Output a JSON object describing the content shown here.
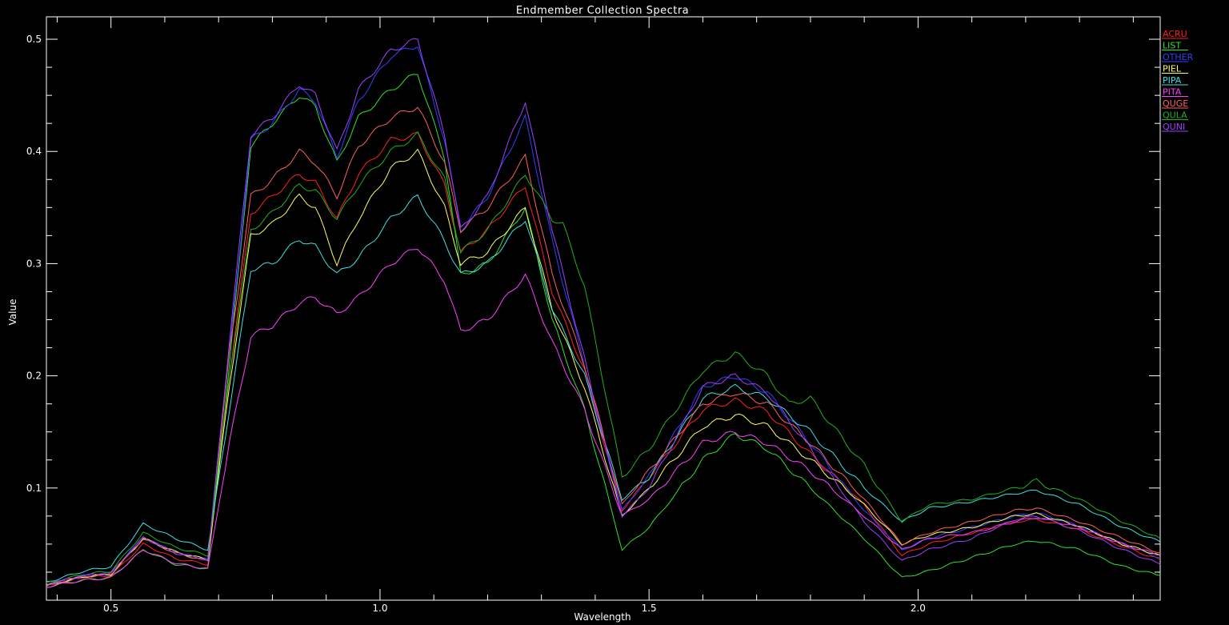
{
  "chart_data": {
    "type": "line",
    "title": "Endmember Collection Spectra",
    "xlabel": "Wavelength",
    "ylabel": "Value",
    "xlim": [
      0.38,
      2.45
    ],
    "ylim": [
      0.0,
      0.52
    ],
    "x_ticks": [
      0.5,
      1.0,
      1.5,
      2.0
    ],
    "x_tick_labels": [
      "0.5",
      "1.0",
      "1.5",
      "2.0"
    ],
    "y_ticks": [
      0.1,
      0.2,
      0.3,
      0.4,
      0.5
    ],
    "y_tick_labels": [
      "0.1",
      "0.2",
      "0.3",
      "0.4",
      "0.5"
    ],
    "grid": false,
    "background": "#000000",
    "axis_color": "#ffffff",
    "legend_placement": "top-right",
    "series": [
      {
        "name": "ACRU",
        "color": "#ff2020",
        "x": [
          0.38,
          0.45,
          0.5,
          0.56,
          0.62,
          0.68,
          0.72,
          0.76,
          0.8,
          0.85,
          0.88,
          0.92,
          0.96,
          1.02,
          1.07,
          1.12,
          1.15,
          1.2,
          1.27,
          1.32,
          1.38,
          1.45,
          1.5,
          1.6,
          1.66,
          1.72,
          1.8,
          1.9,
          1.97,
          2.02,
          2.1,
          2.18,
          2.22,
          2.3,
          2.38,
          2.45
        ],
        "y": [
          0.013,
          0.021,
          0.022,
          0.05,
          0.037,
          0.032,
          0.2,
          0.345,
          0.36,
          0.38,
          0.372,
          0.34,
          0.38,
          0.41,
          0.415,
          0.37,
          0.31,
          0.33,
          0.37,
          0.275,
          0.205,
          0.08,
          0.11,
          0.17,
          0.178,
          0.168,
          0.13,
          0.085,
          0.04,
          0.05,
          0.06,
          0.07,
          0.072,
          0.063,
          0.048,
          0.036
        ]
      },
      {
        "name": "LIST",
        "color": "#30e030",
        "x": [
          0.38,
          0.45,
          0.5,
          0.56,
          0.62,
          0.68,
          0.72,
          0.76,
          0.8,
          0.85,
          0.88,
          0.92,
          0.96,
          1.02,
          1.07,
          1.12,
          1.15,
          1.2,
          1.27,
          1.32,
          1.38,
          1.45,
          1.5,
          1.6,
          1.66,
          1.72,
          1.8,
          1.9,
          1.97,
          2.02,
          2.1,
          2.18,
          2.22,
          2.3,
          2.38,
          2.45
        ],
        "y": [
          0.012,
          0.018,
          0.02,
          0.045,
          0.032,
          0.028,
          0.21,
          0.405,
          0.425,
          0.45,
          0.44,
          0.39,
          0.43,
          0.455,
          0.47,
          0.395,
          0.29,
          0.3,
          0.35,
          0.25,
          0.17,
          0.045,
          0.065,
          0.125,
          0.148,
          0.135,
          0.1,
          0.055,
          0.02,
          0.026,
          0.038,
          0.05,
          0.053,
          0.045,
          0.03,
          0.022
        ]
      },
      {
        "name": "OTHER",
        "color": "#3040ff",
        "x": [
          0.38,
          0.45,
          0.5,
          0.56,
          0.62,
          0.68,
          0.72,
          0.76,
          0.8,
          0.85,
          0.88,
          0.92,
          0.96,
          1.02,
          1.07,
          1.12,
          1.15,
          1.2,
          1.27,
          1.32,
          1.38,
          1.45,
          1.5,
          1.6,
          1.66,
          1.72,
          1.8,
          1.9,
          1.97,
          2.02,
          2.1,
          2.18,
          2.22,
          2.3,
          2.38,
          2.45
        ],
        "y": [
          0.014,
          0.022,
          0.024,
          0.056,
          0.042,
          0.036,
          0.22,
          0.41,
          0.425,
          0.455,
          0.445,
          0.395,
          0.445,
          0.485,
          0.495,
          0.41,
          0.33,
          0.36,
          0.43,
          0.32,
          0.21,
          0.08,
          0.11,
          0.19,
          0.2,
          0.185,
          0.14,
          0.08,
          0.045,
          0.055,
          0.065,
          0.075,
          0.078,
          0.066,
          0.05,
          0.038
        ]
      },
      {
        "name": "PIEL",
        "color": "#ffff60",
        "x": [
          0.38,
          0.45,
          0.5,
          0.56,
          0.62,
          0.68,
          0.72,
          0.76,
          0.8,
          0.85,
          0.88,
          0.92,
          0.96,
          1.02,
          1.07,
          1.12,
          1.15,
          1.2,
          1.27,
          1.32,
          1.38,
          1.45,
          1.5,
          1.6,
          1.66,
          1.72,
          1.8,
          1.9,
          1.97,
          2.02,
          2.1,
          2.18,
          2.22,
          2.3,
          2.38,
          2.45
        ],
        "y": [
          0.013,
          0.021,
          0.023,
          0.055,
          0.043,
          0.036,
          0.19,
          0.325,
          0.335,
          0.36,
          0.35,
          0.3,
          0.34,
          0.385,
          0.4,
          0.35,
          0.3,
          0.31,
          0.35,
          0.26,
          0.19,
          0.075,
          0.1,
          0.155,
          0.165,
          0.155,
          0.125,
          0.085,
          0.05,
          0.058,
          0.065,
          0.075,
          0.077,
          0.066,
          0.05,
          0.04
        ]
      },
      {
        "name": "PIPA",
        "color": "#40e0e0",
        "x": [
          0.38,
          0.45,
          0.5,
          0.56,
          0.62,
          0.68,
          0.72,
          0.76,
          0.8,
          0.85,
          0.88,
          0.92,
          0.96,
          1.02,
          1.07,
          1.12,
          1.15,
          1.2,
          1.27,
          1.32,
          1.38,
          1.45,
          1.5,
          1.6,
          1.66,
          1.72,
          1.8,
          1.9,
          1.97,
          2.02,
          2.1,
          2.18,
          2.22,
          2.3,
          2.38,
          2.45
        ],
        "y": [
          0.016,
          0.026,
          0.03,
          0.068,
          0.055,
          0.045,
          0.17,
          0.295,
          0.3,
          0.322,
          0.315,
          0.29,
          0.305,
          0.34,
          0.36,
          0.32,
          0.29,
          0.3,
          0.34,
          0.26,
          0.2,
          0.09,
          0.11,
          0.18,
          0.19,
          0.18,
          0.15,
          0.1,
          0.07,
          0.082,
          0.088,
          0.095,
          0.098,
          0.085,
          0.065,
          0.052
        ]
      },
      {
        "name": "PITA",
        "color": "#ff40ff",
        "x": [
          0.38,
          0.45,
          0.5,
          0.56,
          0.62,
          0.68,
          0.72,
          0.76,
          0.8,
          0.85,
          0.88,
          0.92,
          0.96,
          1.02,
          1.07,
          1.12,
          1.15,
          1.2,
          1.27,
          1.32,
          1.38,
          1.45,
          1.5,
          1.6,
          1.66,
          1.72,
          1.8,
          1.9,
          1.97,
          2.02,
          2.1,
          2.18,
          2.22,
          2.3,
          2.38,
          2.45
        ],
        "y": [
          0.012,
          0.018,
          0.02,
          0.045,
          0.033,
          0.028,
          0.14,
          0.235,
          0.245,
          0.265,
          0.27,
          0.255,
          0.27,
          0.3,
          0.315,
          0.285,
          0.24,
          0.25,
          0.29,
          0.23,
          0.17,
          0.075,
          0.09,
          0.14,
          0.15,
          0.14,
          0.115,
          0.075,
          0.045,
          0.055,
          0.06,
          0.07,
          0.074,
          0.065,
          0.05,
          0.04
        ]
      },
      {
        "name": "QUGE",
        "color": "#ff6060",
        "x": [
          0.38,
          0.45,
          0.5,
          0.56,
          0.62,
          0.68,
          0.72,
          0.76,
          0.8,
          0.85,
          0.88,
          0.92,
          0.96,
          1.02,
          1.07,
          1.12,
          1.15,
          1.2,
          1.27,
          1.32,
          1.38,
          1.45,
          1.5,
          1.6,
          1.66,
          1.72,
          1.8,
          1.9,
          1.97,
          2.02,
          2.1,
          2.18,
          2.22,
          2.3,
          2.38,
          2.45
        ],
        "y": [
          0.013,
          0.021,
          0.023,
          0.055,
          0.042,
          0.035,
          0.22,
          0.36,
          0.375,
          0.4,
          0.39,
          0.36,
          0.405,
          0.43,
          0.44,
          0.39,
          0.33,
          0.35,
          0.395,
          0.29,
          0.21,
          0.085,
          0.115,
          0.175,
          0.185,
          0.175,
          0.14,
          0.09,
          0.05,
          0.06,
          0.07,
          0.08,
          0.082,
          0.07,
          0.055,
          0.042
        ]
      },
      {
        "name": "QULA",
        "color": "#20b020",
        "x": [
          0.38,
          0.45,
          0.5,
          0.56,
          0.62,
          0.68,
          0.72,
          0.76,
          0.8,
          0.85,
          0.88,
          0.92,
          0.96,
          1.02,
          1.07,
          1.12,
          1.15,
          1.2,
          1.27,
          1.32,
          1.34,
          1.38,
          1.45,
          1.5,
          1.6,
          1.66,
          1.72,
          1.76,
          1.8,
          1.9,
          1.97,
          2.02,
          2.1,
          2.18,
          2.22,
          2.3,
          2.38,
          2.45
        ],
        "y": [
          0.015,
          0.023,
          0.026,
          0.06,
          0.047,
          0.04,
          0.2,
          0.33,
          0.345,
          0.37,
          0.365,
          0.34,
          0.37,
          0.4,
          0.415,
          0.375,
          0.31,
          0.33,
          0.38,
          0.34,
          0.335,
          0.28,
          0.11,
          0.135,
          0.205,
          0.22,
          0.2,
          0.175,
          0.18,
          0.12,
          0.07,
          0.085,
          0.09,
          0.1,
          0.106,
          0.09,
          0.07,
          0.055
        ]
      },
      {
        "name": "QUNI",
        "color": "#a040ff",
        "x": [
          0.38,
          0.45,
          0.5,
          0.56,
          0.62,
          0.68,
          0.72,
          0.76,
          0.8,
          0.85,
          0.88,
          0.92,
          0.96,
          1.02,
          1.07,
          1.12,
          1.15,
          1.2,
          1.27,
          1.32,
          1.38,
          1.45,
          1.5,
          1.6,
          1.66,
          1.72,
          1.8,
          1.9,
          1.97,
          2.02,
          2.1,
          2.18,
          2.22,
          2.3,
          2.38,
          2.45
        ],
        "y": [
          0.014,
          0.022,
          0.024,
          0.056,
          0.042,
          0.036,
          0.23,
          0.415,
          0.43,
          0.46,
          0.45,
          0.4,
          0.455,
          0.49,
          0.5,
          0.415,
          0.33,
          0.36,
          0.445,
          0.33,
          0.215,
          0.075,
          0.1,
          0.19,
          0.2,
          0.185,
          0.135,
          0.07,
          0.035,
          0.045,
          0.055,
          0.072,
          0.075,
          0.062,
          0.045,
          0.032
        ]
      }
    ]
  }
}
